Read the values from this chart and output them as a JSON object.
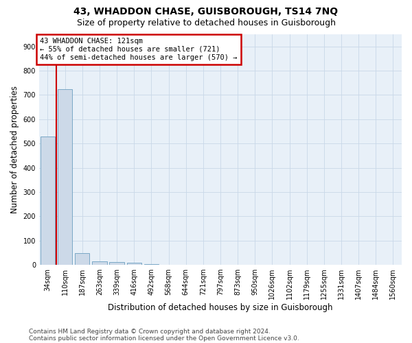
{
  "title": "43, WHADDON CHASE, GUISBOROUGH, TS14 7NQ",
  "subtitle": "Size of property relative to detached houses in Guisborough",
  "xlabel": "Distribution of detached houses by size in Guisborough",
  "ylabel": "Number of detached properties",
  "footnote1": "Contains HM Land Registry data © Crown copyright and database right 2024.",
  "footnote2": "Contains public sector information licensed under the Open Government Licence v3.0.",
  "categories": [
    "34sqm",
    "110sqm",
    "187sqm",
    "263sqm",
    "339sqm",
    "416sqm",
    "492sqm",
    "568sqm",
    "644sqm",
    "721sqm",
    "797sqm",
    "873sqm",
    "950sqm",
    "1026sqm",
    "1102sqm",
    "1179sqm",
    "1255sqm",
    "1331sqm",
    "1407sqm",
    "1484sqm",
    "1560sqm"
  ],
  "values": [
    530,
    725,
    47,
    15,
    10,
    8,
    2,
    1,
    0,
    0,
    0,
    0,
    0,
    0,
    0,
    0,
    0,
    0,
    0,
    0,
    0
  ],
  "bar_color": "#ccd9e8",
  "bar_edge_color": "#6a9ec0",
  "highlight_line_color": "#cc0000",
  "property_line_x": 0.5,
  "annotation_text": "43 WHADDON CHASE: 121sqm\n← 55% of detached houses are smaller (721)\n44% of semi-detached houses are larger (570) →",
  "annotation_box_edge_color": "#cc0000",
  "ylim": [
    0,
    950
  ],
  "yticks": [
    0,
    100,
    200,
    300,
    400,
    500,
    600,
    700,
    800,
    900
  ],
  "grid_color": "#c8d8e8",
  "background_color": "#e8f0f8",
  "title_fontsize": 10,
  "subtitle_fontsize": 9,
  "tick_fontsize": 7,
  "label_fontsize": 8.5,
  "footnote_fontsize": 6.5
}
